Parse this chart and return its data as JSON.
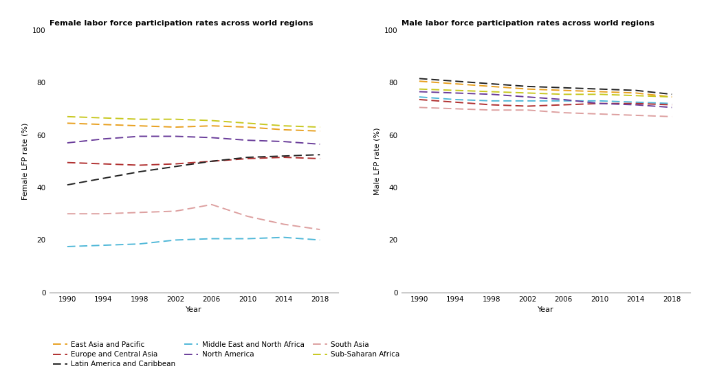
{
  "years": [
    1990,
    1994,
    1998,
    2002,
    2006,
    2010,
    2014,
    2018
  ],
  "female": {
    "East Asia and Pacific": [
      64.5,
      64.0,
      63.5,
      63.0,
      63.5,
      63.0,
      62.0,
      61.5
    ],
    "Europe and Central Asia": [
      49.5,
      49.0,
      48.5,
      49.0,
      50.0,
      51.0,
      51.5,
      51.0
    ],
    "Latin America and Caribbean": [
      41.0,
      43.5,
      46.0,
      48.0,
      50.0,
      51.5,
      52.0,
      52.5
    ],
    "Middle East and North Africa": [
      17.5,
      18.0,
      18.5,
      20.0,
      20.5,
      20.5,
      21.0,
      20.0
    ],
    "North America": [
      57.0,
      58.5,
      59.5,
      59.5,
      59.0,
      58.0,
      57.5,
      56.5
    ],
    "South Asia": [
      30.0,
      30.0,
      30.5,
      31.0,
      33.5,
      29.0,
      26.0,
      24.0
    ],
    "Sub-Saharan Africa": [
      67.0,
      66.5,
      66.0,
      66.0,
      65.5,
      64.5,
      63.5,
      63.0
    ]
  },
  "male": {
    "East Asia and Pacific": [
      80.5,
      79.5,
      78.5,
      77.5,
      77.0,
      76.5,
      76.0,
      74.5
    ],
    "Europe and Central Asia": [
      73.5,
      72.5,
      71.5,
      71.0,
      71.5,
      72.0,
      72.0,
      71.5
    ],
    "Latin America and Caribbean": [
      81.5,
      80.5,
      79.5,
      78.5,
      78.0,
      77.5,
      77.0,
      75.5
    ],
    "Middle East and North Africa": [
      74.5,
      73.5,
      73.0,
      73.0,
      73.0,
      73.0,
      72.5,
      72.0
    ],
    "North America": [
      76.5,
      76.0,
      75.5,
      74.5,
      73.5,
      72.0,
      71.5,
      70.5
    ],
    "South Asia": [
      70.5,
      70.0,
      69.5,
      69.5,
      68.5,
      68.0,
      67.5,
      67.0
    ],
    "Sub-Saharan Africa": [
      77.5,
      77.0,
      76.5,
      76.0,
      75.5,
      75.5,
      75.0,
      74.5
    ]
  },
  "colors": {
    "East Asia and Pacific": "#E8A020",
    "Europe and Central Asia": "#B03030",
    "Latin America and Caribbean": "#222222",
    "Middle East and North Africa": "#50B8D8",
    "North America": "#6A3D9A",
    "South Asia": "#DDA0A0",
    "Sub-Saharan Africa": "#C8C820"
  },
  "title_female": "Female labor force participation rates across world regions",
  "title_male": "Male labor force participation rates across world regions",
  "ylabel_female": "Female LFP rate (%)",
  "ylabel_male": "Male LFP rate (%)",
  "xlabel": "Year",
  "ylim": [
    0,
    100
  ],
  "yticks": [
    0,
    20,
    40,
    60,
    80,
    100
  ],
  "background_color": "#FFFFFF",
  "legend_order": [
    "East Asia and Pacific",
    "Middle East and North Africa",
    "Sub-Saharan Africa",
    "Europe and Central Asia",
    "North America",
    "Latin America and Caribbean",
    "South Asia"
  ]
}
